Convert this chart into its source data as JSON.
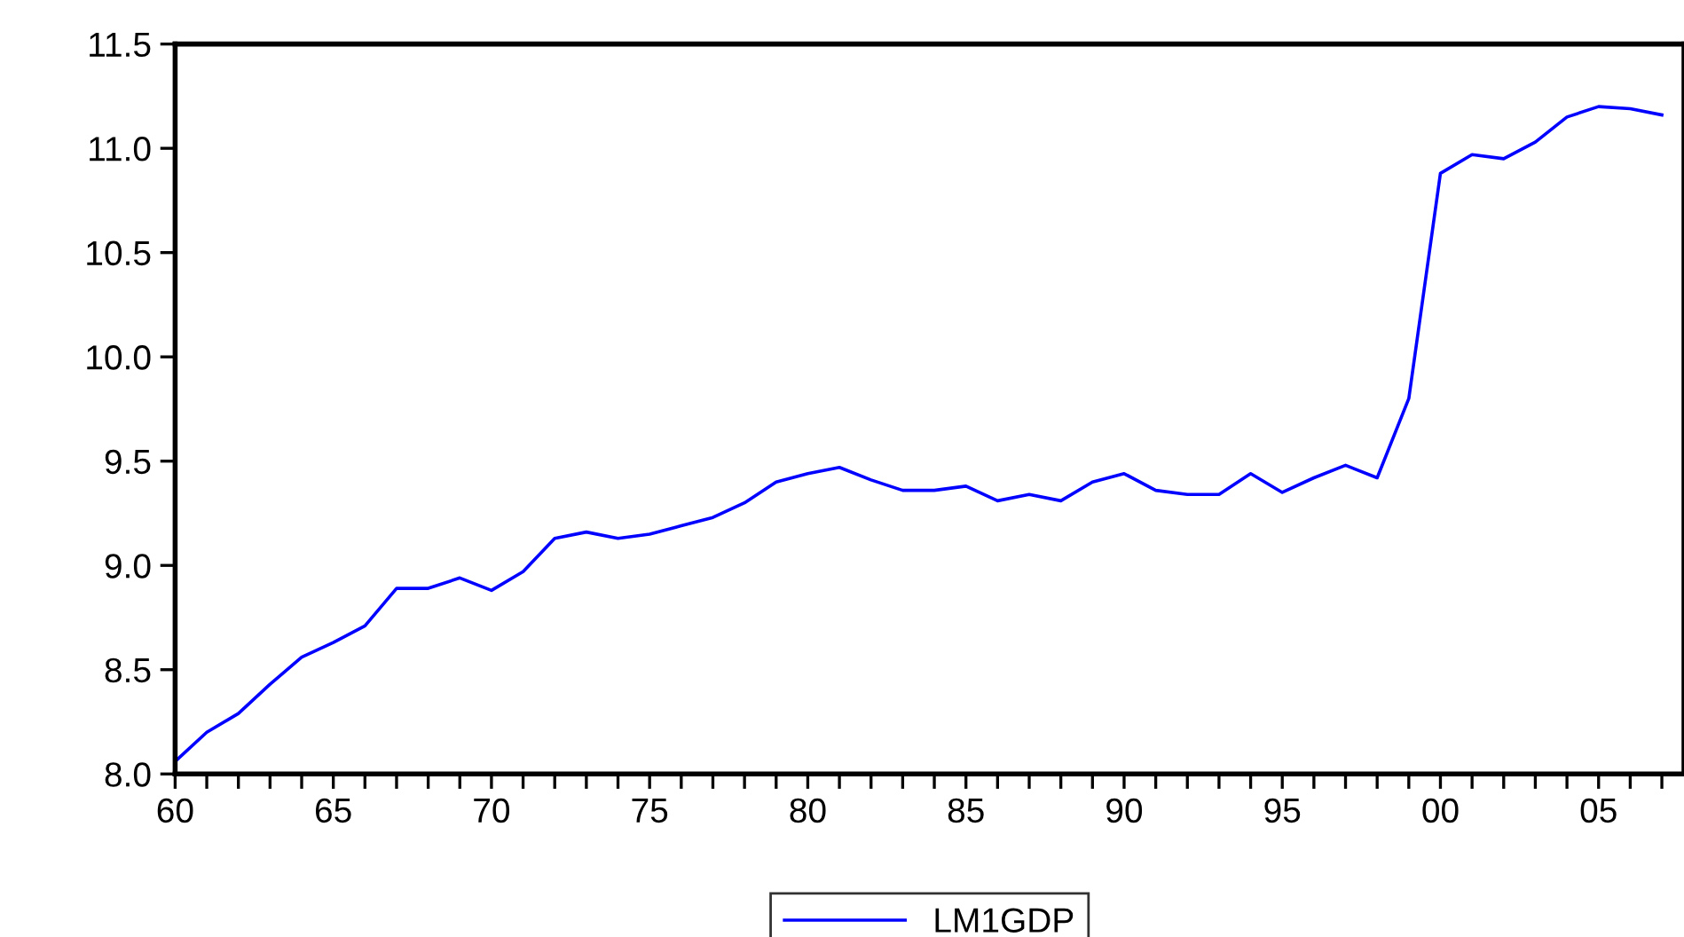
{
  "chart_data": {
    "type": "line",
    "x": [
      1960,
      1961,
      1962,
      1963,
      1964,
      1965,
      1966,
      1967,
      1968,
      1969,
      1970,
      1971,
      1972,
      1973,
      1974,
      1975,
      1976,
      1977,
      1978,
      1979,
      1980,
      1981,
      1982,
      1983,
      1984,
      1985,
      1986,
      1987,
      1988,
      1989,
      1990,
      1991,
      1992,
      1993,
      1994,
      1995,
      1996,
      1997,
      1998,
      1999,
      2000,
      2001,
      2002,
      2003,
      2004,
      2005,
      2006,
      2007
    ],
    "series": [
      {
        "name": "LM1GDP",
        "color": "#0000ff",
        "values": [
          8.06,
          8.2,
          8.29,
          8.43,
          8.56,
          8.63,
          8.71,
          8.89,
          8.89,
          8.94,
          8.88,
          8.97,
          9.13,
          9.16,
          9.13,
          9.15,
          9.19,
          9.23,
          9.3,
          9.4,
          9.44,
          9.47,
          9.41,
          9.36,
          9.36,
          9.38,
          9.31,
          9.34,
          9.31,
          9.4,
          9.44,
          9.36,
          9.34,
          9.34,
          9.44,
          9.35,
          9.42,
          9.48,
          9.42,
          9.8,
          10.88,
          10.97,
          10.95,
          11.03,
          11.15,
          11.2,
          11.19,
          11.16
        ]
      }
    ],
    "xlim": [
      1960,
      2007.7
    ],
    "xticks": [
      {
        "value": 1960,
        "label": "60"
      },
      {
        "value": 1961,
        "label": null
      },
      {
        "value": 1962,
        "label": null
      },
      {
        "value": 1963,
        "label": null
      },
      {
        "value": 1964,
        "label": null
      },
      {
        "value": 1965,
        "label": "65"
      },
      {
        "value": 1966,
        "label": null
      },
      {
        "value": 1967,
        "label": null
      },
      {
        "value": 1968,
        "label": null
      },
      {
        "value": 1969,
        "label": null
      },
      {
        "value": 1970,
        "label": "70"
      },
      {
        "value": 1971,
        "label": null
      },
      {
        "value": 1972,
        "label": null
      },
      {
        "value": 1973,
        "label": null
      },
      {
        "value": 1974,
        "label": null
      },
      {
        "value": 1975,
        "label": "75"
      },
      {
        "value": 1976,
        "label": null
      },
      {
        "value": 1977,
        "label": null
      },
      {
        "value": 1978,
        "label": null
      },
      {
        "value": 1979,
        "label": null
      },
      {
        "value": 1980,
        "label": "80"
      },
      {
        "value": 1981,
        "label": null
      },
      {
        "value": 1982,
        "label": null
      },
      {
        "value": 1983,
        "label": null
      },
      {
        "value": 1984,
        "label": null
      },
      {
        "value": 1985,
        "label": "85"
      },
      {
        "value": 1986,
        "label": null
      },
      {
        "value": 1987,
        "label": null
      },
      {
        "value": 1988,
        "label": null
      },
      {
        "value": 1989,
        "label": null
      },
      {
        "value": 1990,
        "label": "90"
      },
      {
        "value": 1991,
        "label": null
      },
      {
        "value": 1992,
        "label": null
      },
      {
        "value": 1993,
        "label": null
      },
      {
        "value": 1994,
        "label": null
      },
      {
        "value": 1995,
        "label": "95"
      },
      {
        "value": 1996,
        "label": null
      },
      {
        "value": 1997,
        "label": null
      },
      {
        "value": 1998,
        "label": null
      },
      {
        "value": 1999,
        "label": null
      },
      {
        "value": 2000,
        "label": "00"
      },
      {
        "value": 2001,
        "label": null
      },
      {
        "value": 2002,
        "label": null
      },
      {
        "value": 2003,
        "label": null
      },
      {
        "value": 2004,
        "label": null
      },
      {
        "value": 2005,
        "label": "05"
      },
      {
        "value": 2006,
        "label": null
      },
      {
        "value": 2007,
        "label": null
      }
    ],
    "ylim": [
      8.0,
      11.5
    ],
    "yticks": [
      {
        "value": 8.0,
        "label": "8.0"
      },
      {
        "value": 8.5,
        "label": "8.5"
      },
      {
        "value": 9.0,
        "label": "9.0"
      },
      {
        "value": 9.5,
        "label": "9.5"
      },
      {
        "value": 10.0,
        "label": "10.0"
      },
      {
        "value": 10.5,
        "label": "10.5"
      },
      {
        "value": 11.0,
        "label": "11.0"
      },
      {
        "value": 11.5,
        "label": "11.5"
      }
    ],
    "legend": "bottom"
  }
}
